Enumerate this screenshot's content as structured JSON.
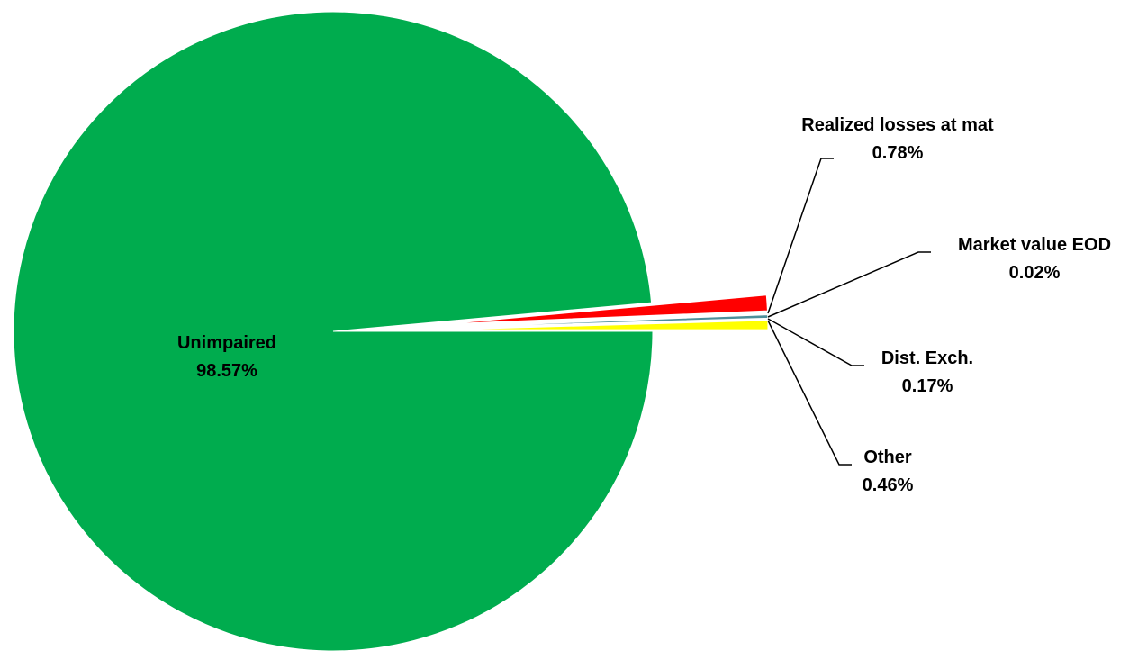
{
  "chart_data": {
    "type": "pie",
    "title": "",
    "slices": [
      {
        "name": "Unimpaired",
        "value": 98.57,
        "label": "98.57%",
        "color": "#00AC4E"
      },
      {
        "name": "Realized losses at mat",
        "value": 0.78,
        "label": "0.78%",
        "color": "#FF0000"
      },
      {
        "name": "Market value EOD",
        "value": 0.02,
        "label": "0.02%",
        "color": "#00AC4E"
      },
      {
        "name": "Dist. Exch.",
        "value": 0.17,
        "label": "0.17%",
        "color": "#4D8F9A"
      },
      {
        "name": "Other",
        "value": 0.46,
        "label": "0.46%",
        "color": "#FFFF00"
      }
    ],
    "exploded_slices": [
      "Realized losses at mat",
      "Market value EOD",
      "Dist. Exch.",
      "Other"
    ],
    "legend": "none",
    "data_labels": "name-and-percent"
  }
}
